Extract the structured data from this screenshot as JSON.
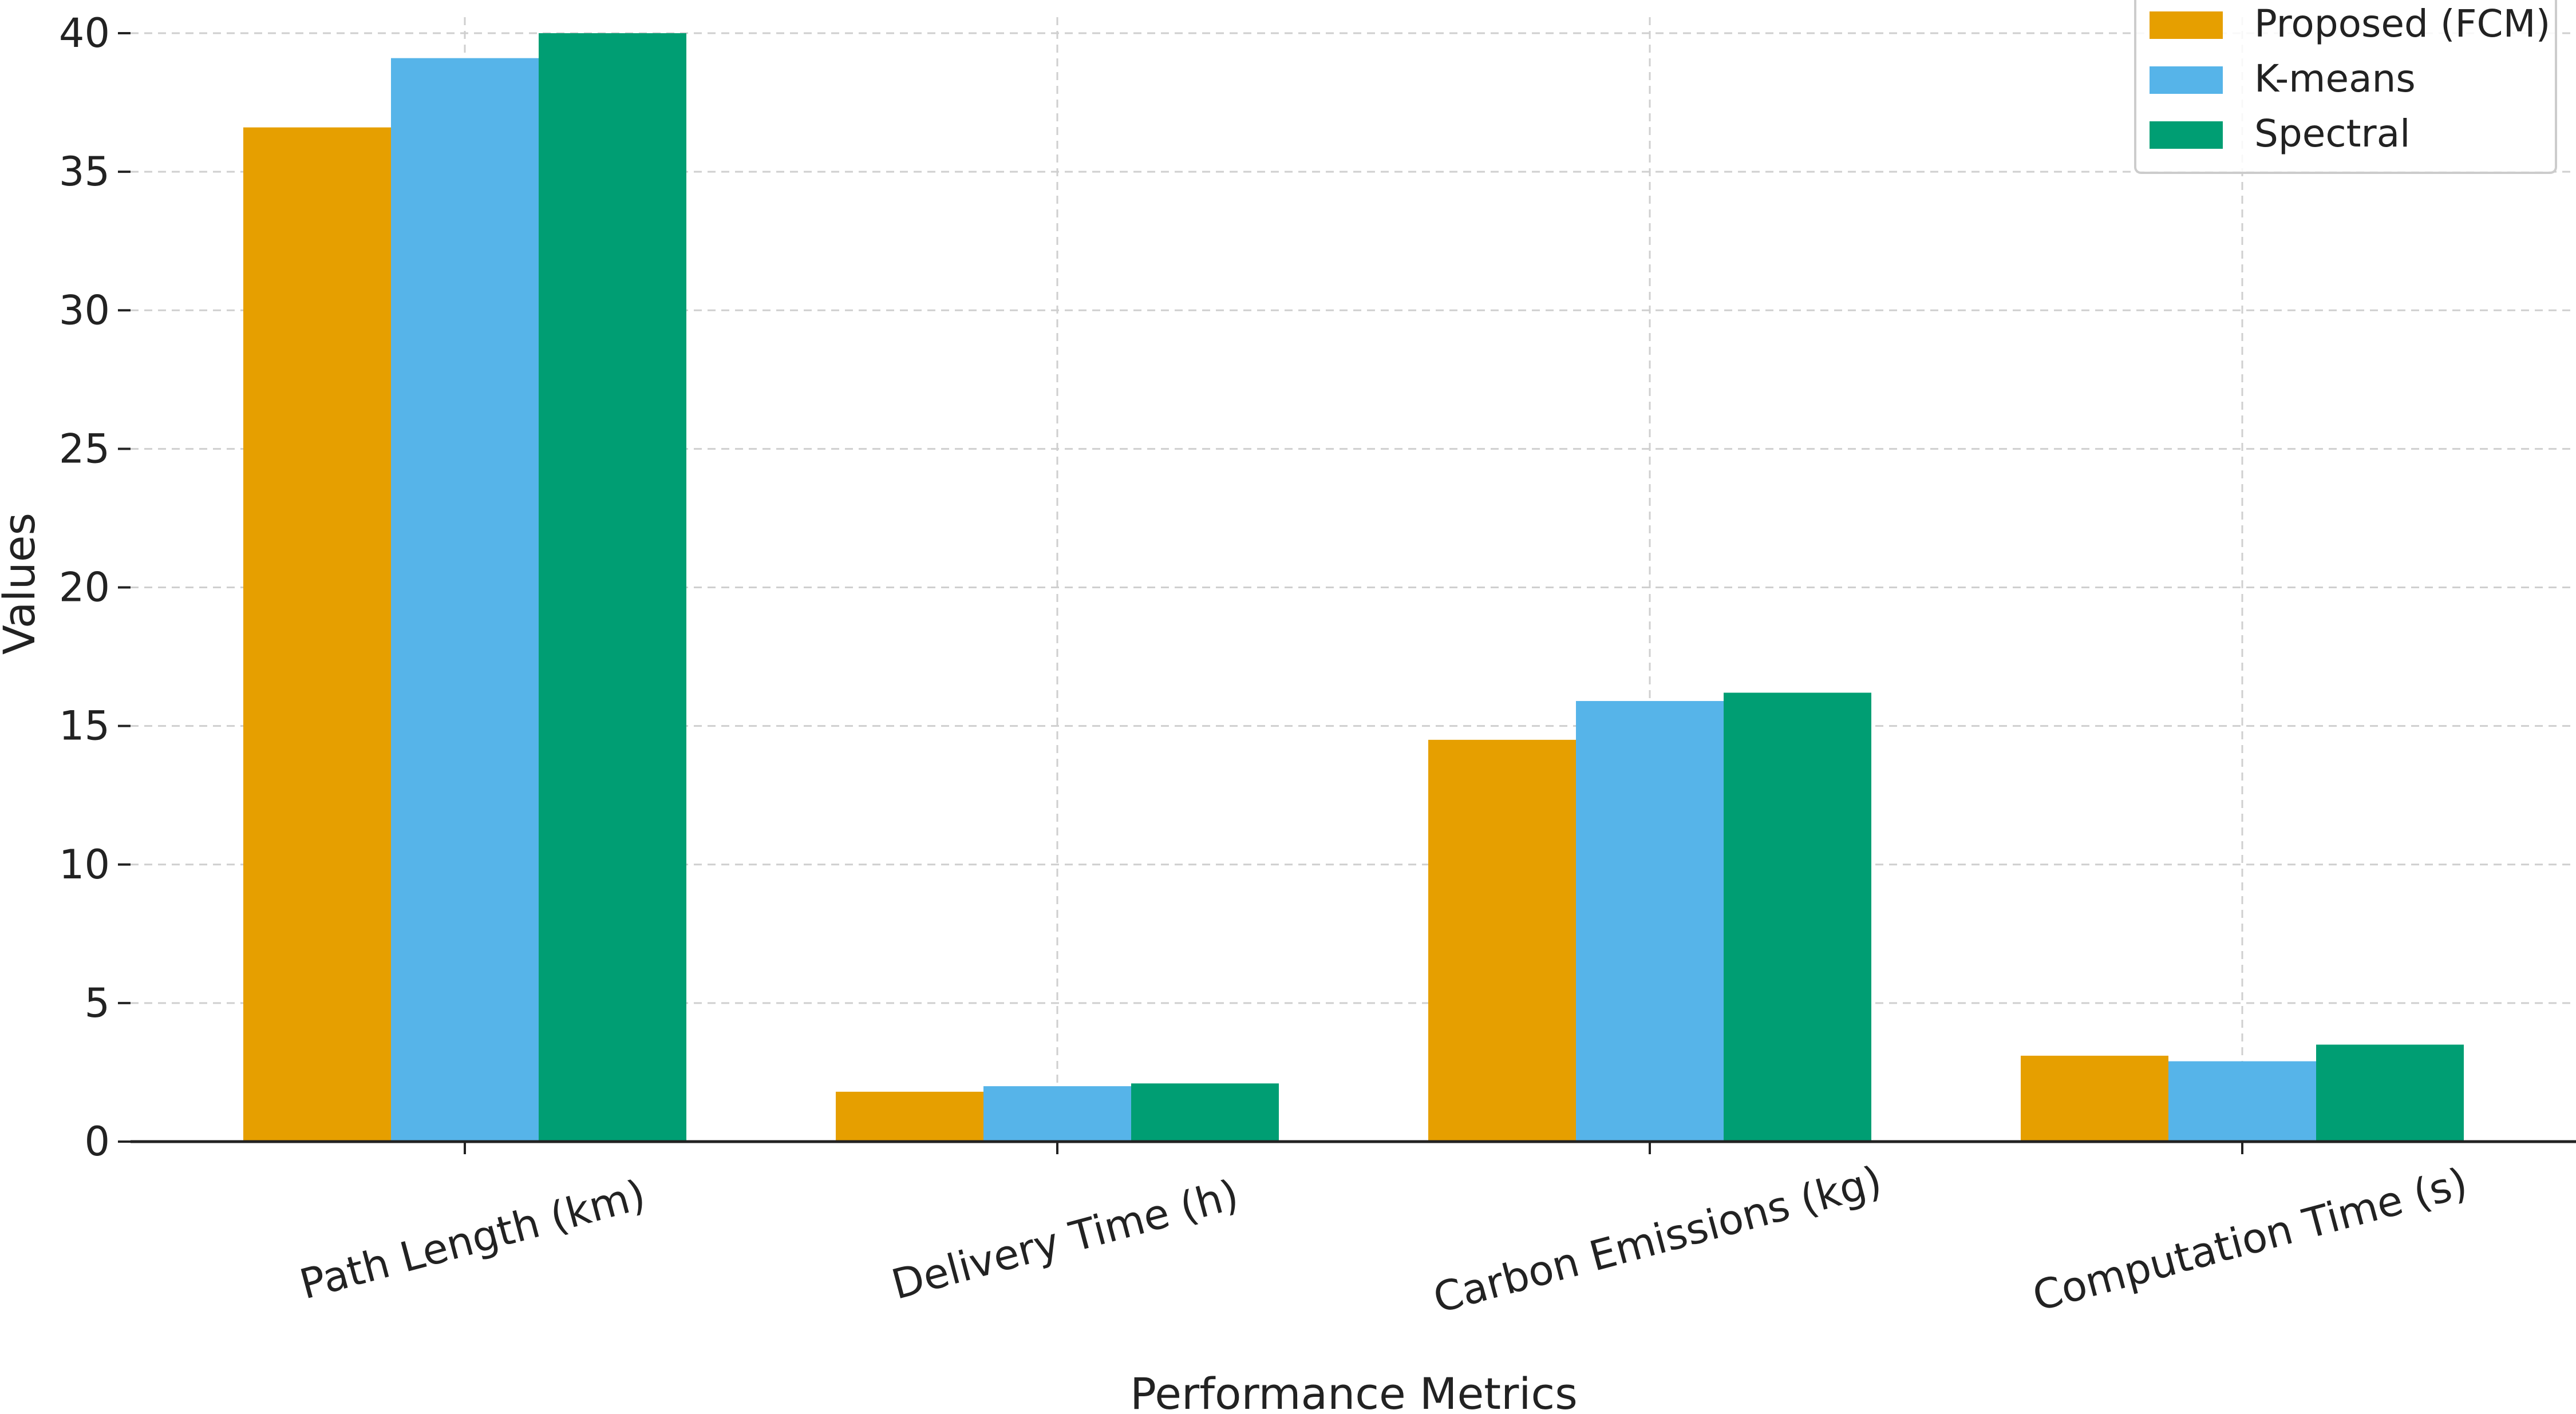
{
  "chart_data": {
    "type": "bar",
    "title": "",
    "xlabel": "Performance Metrics",
    "ylabel": "Values",
    "ylim": [
      0,
      40
    ],
    "yticks": [
      0,
      5,
      10,
      15,
      20,
      25,
      30,
      35,
      40
    ],
    "ytick_labels": [
      "0",
      "5",
      "10",
      "15",
      "20",
      "25",
      "30",
      "35",
      "40"
    ],
    "grid": true,
    "legend_position": "top-right",
    "categories": [
      "Path Length (km)",
      "Delivery Time (h)",
      "Carbon Emissions (kg)",
      "Computation Time (s)"
    ],
    "series": [
      {
        "name": "Proposed (FCM)",
        "color": "#E69F00",
        "values": [
          36.6,
          1.8,
          14.5,
          3.1
        ]
      },
      {
        "name": "K-means",
        "color": "#56B4E9",
        "values": [
          39.1,
          2.0,
          15.9,
          2.9
        ]
      },
      {
        "name": "Spectral",
        "color": "#009E73",
        "values": [
          40.0,
          2.1,
          16.2,
          3.5
        ]
      }
    ]
  }
}
